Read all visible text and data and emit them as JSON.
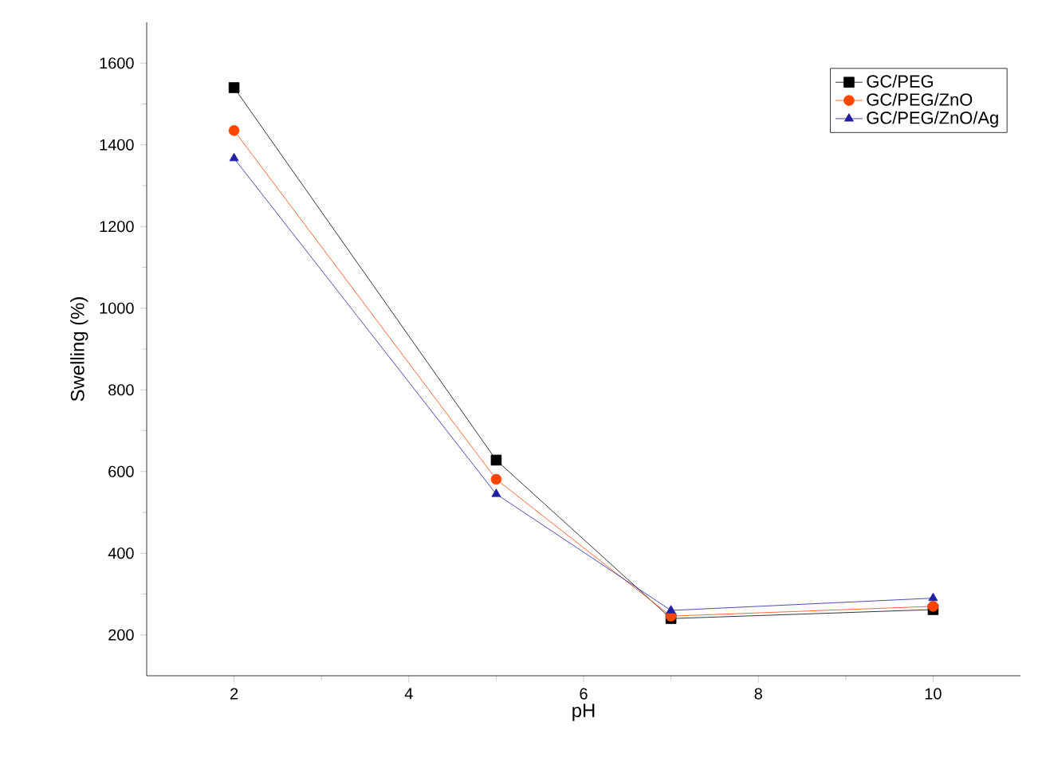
{
  "chart_data": {
    "type": "line",
    "xlabel": "pH",
    "ylabel": "Swelling (%)",
    "x": [
      2,
      5,
      7,
      10
    ],
    "xlim": [
      1,
      11
    ],
    "xticks": [
      2,
      4,
      6,
      8,
      10
    ],
    "ylim": [
      100,
      1700
    ],
    "yticks": [
      200,
      400,
      600,
      800,
      1000,
      1200,
      1400,
      1600
    ],
    "legend": "top right",
    "grid": false,
    "series": [
      {
        "name": "GC/PEG",
        "color": "#000000",
        "marker": "square",
        "values": [
          1540,
          628,
          240,
          262
        ]
      },
      {
        "name": "GC/PEG/ZnO",
        "color": "#ff4500",
        "marker": "circle",
        "values": [
          1435,
          581,
          246,
          270
        ]
      },
      {
        "name": "GC/PEG/ZnO/Ag",
        "color": "#1f1f9f",
        "marker": "triangle",
        "values": [
          1367,
          545,
          260,
          290
        ]
      }
    ]
  }
}
